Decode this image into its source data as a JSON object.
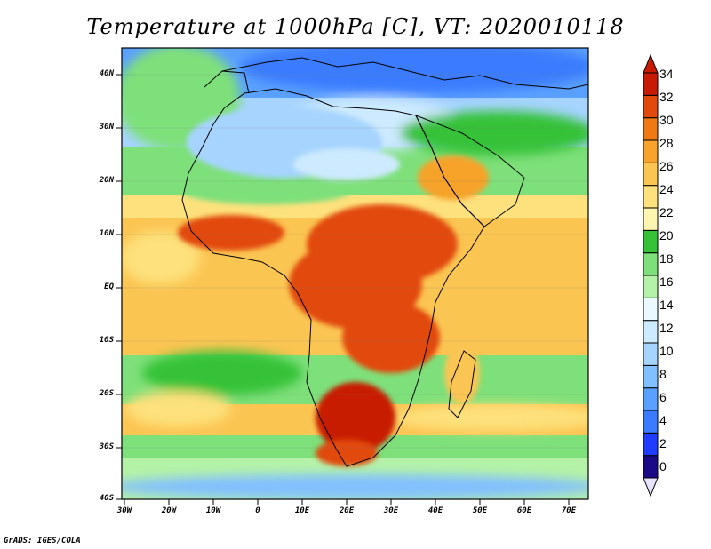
{
  "title": "Temperature at 1000hPa [C], VT: 2020010118",
  "credit": "GrADS: IGES/COLA",
  "map": {
    "lat_ticks": [
      "40N",
      "30N",
      "20N",
      "10N",
      "EQ",
      "10S",
      "20S",
      "30S",
      "40S"
    ],
    "lon_ticks": [
      "30W",
      "20W",
      "10W",
      "0",
      "10E",
      "20E",
      "30E",
      "40E",
      "50E",
      "60E",
      "70E"
    ],
    "lon_range": [
      -30,
      75
    ],
    "lat_range": [
      -40,
      45
    ]
  },
  "colorbar": {
    "labels": [
      "34",
      "32",
      "30",
      "28",
      "26",
      "24",
      "22",
      "20",
      "18",
      "16",
      "14",
      "12",
      "10",
      "8",
      "6",
      "4",
      "2",
      "0"
    ],
    "colors": [
      "#1a0a86",
      "#1e3cff",
      "#3a7bff",
      "#5aa0ff",
      "#82bfff",
      "#a6d4ff",
      "#cdeaff",
      "#e9f9ff",
      "#b4f2a8",
      "#7ee07a",
      "#35c238",
      "#fdf5b0",
      "#fde17c",
      "#fbc552",
      "#f7a32c",
      "#ef7a14",
      "#e24a0d",
      "#c71b06"
    ],
    "under_color": "#e6e2ff",
    "over_color": "#c71b06"
  },
  "palette": {
    "hot": "#d42d0c",
    "warm": "#f5a53a",
    "mild": "#f9d068",
    "cool": "#5bc65a",
    "cold": "#8fc3ef",
    "outline": "#000000"
  }
}
